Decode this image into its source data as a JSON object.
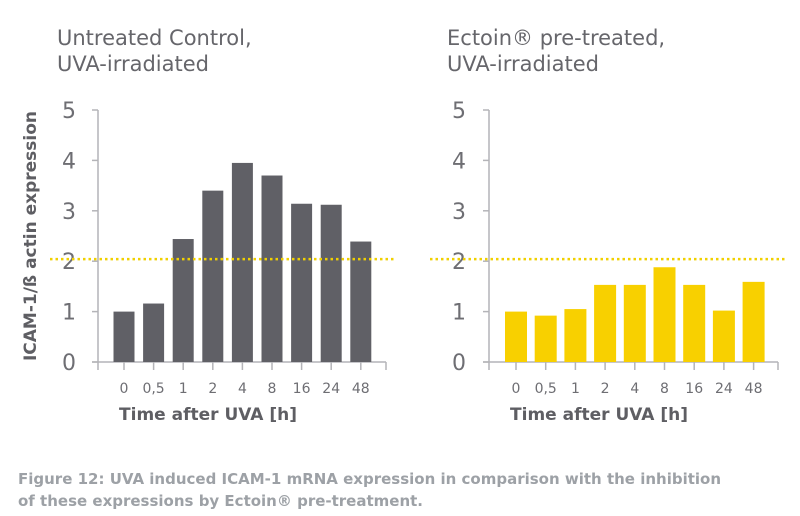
{
  "colors": {
    "control": "#606066",
    "ectoin": "#f8d000",
    "reference_line": "#f0d000",
    "axis": "#b4b4b8"
  },
  "ylabel": "ICAM-1/ß actin expression",
  "caption": {
    "line1": "Figure 12: UVA induced ICAM-1 mRNA expression in comparison with the inhibition",
    "line2": "of these expressions by Ectoin® pre-treatment."
  },
  "chart_data": [
    {
      "type": "bar",
      "title_lines": [
        "Untreated Control,",
        "UVA-irradiated"
      ],
      "xlabel": "Time after UVA [h]",
      "ylabel": "ICAM-1/ß actin expression",
      "categories": [
        "0",
        "0,5",
        "1",
        "2",
        "4",
        "8",
        "16",
        "24",
        "48"
      ],
      "values": [
        1.0,
        1.16,
        2.44,
        3.4,
        3.95,
        3.7,
        3.14,
        3.12,
        2.39
      ],
      "ylim": [
        0,
        5
      ],
      "yticks": [
        0,
        1,
        2,
        3,
        4,
        5
      ],
      "reference_line": 2.04,
      "grid": false,
      "color": "#606066"
    },
    {
      "type": "bar",
      "title_lines": [
        "Ectoin® pre-treated,",
        "UVA-irradiated"
      ],
      "xlabel": "Time after UVA [h]",
      "categories": [
        "0",
        "0,5",
        "1",
        "2",
        "4",
        "8",
        "16",
        "24",
        "48"
      ],
      "values": [
        1.0,
        0.92,
        1.05,
        1.53,
        1.53,
        1.88,
        1.53,
        1.02,
        1.59
      ],
      "ylim": [
        0,
        5
      ],
      "yticks": [
        0,
        1,
        2,
        3,
        4,
        5
      ],
      "reference_line": 2.04,
      "grid": false,
      "color": "#f8d000"
    }
  ]
}
